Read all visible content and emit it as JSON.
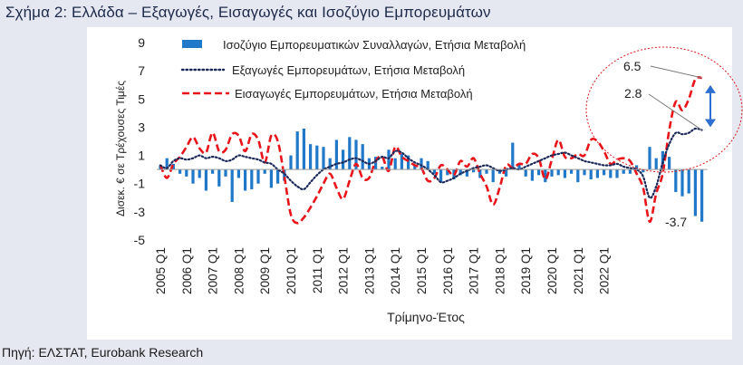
{
  "title": "Σχήμα 2: Ελλάδα – Εξαγωγές, Εισαγωγές και Ισοζύγιο Εμπορευμάτων",
  "source": "Πηγή: ΕΛΣΤΑΤ, Eurobank Research",
  "chart_data": {
    "type": "bar",
    "xlabel": "Τρίμηνο-Έτος",
    "ylabel": "Δισεκ. € σε Τρέχουσες Τιμές",
    "ylim": [
      -5,
      9
    ],
    "yticks": [
      9,
      7,
      5,
      3,
      1,
      -1,
      -3,
      -5
    ],
    "xtick_labels": [
      "2005 Q1",
      "2006 Q1",
      "2007 Q1",
      "2008 Q1",
      "2009 Q1",
      "2010 Q1",
      "2011 Q1",
      "2012 Q1",
      "2013 Q1",
      "2014 Q1",
      "2015 Q1",
      "2016 Q1",
      "2017 Q1",
      "2018 Q1",
      "2019 Q1",
      "2020 Q1",
      "2021 Q1",
      "2022 Q1"
    ],
    "legend_position": "top",
    "series": [
      {
        "name": "Ισοζύγιο Εμπορευματικών Συναλλαγών, Ετήσια Μεταβολή",
        "kind": "bar",
        "color": "#1f78c8",
        "values": [
          0.3,
          0.8,
          0.4,
          -0.3,
          -0.5,
          -1.0,
          -0.6,
          -1.5,
          -0.3,
          -1.2,
          -0.5,
          -2.3,
          -0.6,
          -1.5,
          -1.4,
          -1.0,
          -0.3,
          -1.3,
          -1.0,
          -0.8,
          1.0,
          2.7,
          2.9,
          1.8,
          1.7,
          1.6,
          0.8,
          2.1,
          1.4,
          2.3,
          2.1,
          1.8,
          0.8,
          0.9,
          0.2,
          1.4,
          0.8,
          1.1,
          1.0,
          0.3,
          0.8,
          0.6,
          -0.3,
          -0.9,
          -0.4,
          -0.7,
          -0.4,
          -0.5,
          -0.2,
          -0.6,
          -0.3,
          -0.9,
          -0.3,
          -0.5,
          1.9,
          0.4,
          -0.5,
          -0.8,
          -0.4,
          -0.9,
          -0.5,
          -0.4,
          -0.6,
          -0.3,
          -0.9,
          -0.4,
          -0.7,
          -0.6,
          -0.4,
          -0.6,
          -0.6,
          -0.3,
          -0.3,
          0.3,
          -0.2,
          1.6,
          0.8,
          1.3,
          0.9,
          -1.6,
          -1.9,
          -1.7,
          -3.3,
          -3.7
        ]
      },
      {
        "name": "Εξαγωγές Εμπορευμάτων, Ετήσια Μεταβολή",
        "kind": "line",
        "style": "dotted",
        "color": "#1c2a5a",
        "values": [
          0.3,
          0.1,
          0.6,
          0.8,
          0.7,
          0.8,
          1.0,
          0.8,
          0.9,
          0.8,
          0.6,
          0.7,
          1.0,
          0.9,
          0.8,
          0.7,
          0.5,
          0.4,
          0.0,
          -0.3,
          -0.8,
          -1.2,
          -1.4,
          -0.9,
          -0.4,
          0.0,
          0.2,
          0.4,
          0.5,
          0.7,
          0.8,
          0.6,
          0.4,
          0.6,
          0.9,
          0.8,
          1.3,
          1.2,
          0.8,
          0.5,
          0.3,
          0.0,
          -0.4,
          -0.9,
          -0.8,
          -0.6,
          -0.3,
          -0.1,
          0.1,
          0.2,
          0.3,
          0.1,
          -0.1,
          0.0,
          0.1,
          0.0,
          0.2,
          0.4,
          0.6,
          0.8,
          1.0,
          1.1,
          1.2,
          1.0,
          0.8,
          0.6,
          0.5,
          0.4,
          0.3,
          0.3,
          0.4,
          0.2,
          0.1,
          0.0,
          -0.5,
          -2.0,
          -1.2,
          0.5,
          1.8,
          2.6,
          2.5,
          2.6,
          2.9,
          2.8
        ]
      },
      {
        "name": "Εισαγωγές Εμπορευμάτων, Ετήσια Μεταβολή",
        "kind": "line",
        "style": "dashed",
        "color": "#e8141a",
        "values": [
          0.3,
          -0.6,
          0.4,
          0.9,
          1.6,
          2.3,
          1.5,
          1.2,
          2.6,
          1.3,
          1.4,
          2.5,
          2.4,
          1.3,
          2.5,
          2.1,
          0.5,
          2.4,
          2.0,
          -0.5,
          -3.2,
          -3.8,
          -3.4,
          -2.7,
          -1.9,
          -1.0,
          -0.3,
          -1.3,
          -2.1,
          -0.8,
          0.4,
          -0.6,
          -0.6,
          0.6,
          0.9,
          -0.1,
          1.6,
          0.9,
          0.6,
          0.3,
          0.1,
          -0.8,
          -0.6,
          0.3,
          0.0,
          -0.4,
          0.6,
          0.2,
          0.8,
          -0.3,
          -1.2,
          -2.5,
          -1.3,
          0.3,
          0.1,
          0.4,
          0.4,
          1.1,
          0.8,
          -0.7,
          0.7,
          2.1,
          0.9,
          0.8,
          1.1,
          1.0,
          2.1,
          2.0,
          1.3,
          0.4,
          0.7,
          0.8,
          0.6,
          -0.3,
          -1.3,
          -3.7,
          -1.7,
          -0.3,
          2.8,
          4.8,
          4.2,
          5.0,
          6.4,
          6.5
        ]
      }
    ],
    "annotations": [
      {
        "text": "6.5",
        "series": "Εισαγωγές Εμπορευμάτων, Ετήσια Μεταβολή",
        "value": 6.5
      },
      {
        "text": "2.8",
        "series": "Εξαγωγές Εμπορευμάτων, Ετήσια Μεταβολή",
        "value": 2.8
      },
      {
        "text": "-3.7",
        "series": "Ισοζύγιο Εμπορευματικών Συναλλαγών, Ετήσια Μεταβολή",
        "value": -3.7
      }
    ]
  }
}
